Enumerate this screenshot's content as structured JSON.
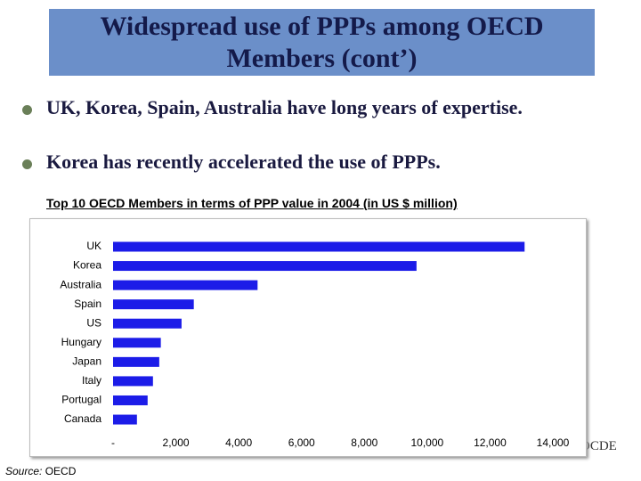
{
  "slide": {
    "title": "Widespread use of PPPs among OECD Members (cont’)",
    "bullets": [
      "UK, Korea, Spain, Australia have long years of expertise.",
      "Korea has recently accelerated the use of PPPs."
    ],
    "source_label": "Source:",
    "source": "OECD",
    "logo_text": "OCDE"
  },
  "chart_data": {
    "type": "bar",
    "orientation": "horizontal",
    "title": "Top 10 OECD Members in terms of PPP value in 2004 (in US $ million)",
    "categories": [
      "UK",
      "Korea",
      "Australia",
      "Spain",
      "US",
      "Hungary",
      "Japan",
      "Italy",
      "Portugal",
      "Canada"
    ],
    "values": [
      13100,
      9660,
      4600,
      2570,
      2180,
      1520,
      1470,
      1270,
      1100,
      760
    ],
    "color": "#1c1ce8",
    "xlim": [
      0,
      14000
    ],
    "xticks": [
      {
        "value": 0,
        "label": "-"
      },
      {
        "value": 2000,
        "label": "2,000"
      },
      {
        "value": 4000,
        "label": "4,000"
      },
      {
        "value": 6000,
        "label": "6,000"
      },
      {
        "value": 8000,
        "label": "8,000"
      },
      {
        "value": 10000,
        "label": "10,000"
      },
      {
        "value": 12000,
        "label": "12,000"
      },
      {
        "value": 14000,
        "label": "14,000"
      }
    ],
    "grid": false
  }
}
